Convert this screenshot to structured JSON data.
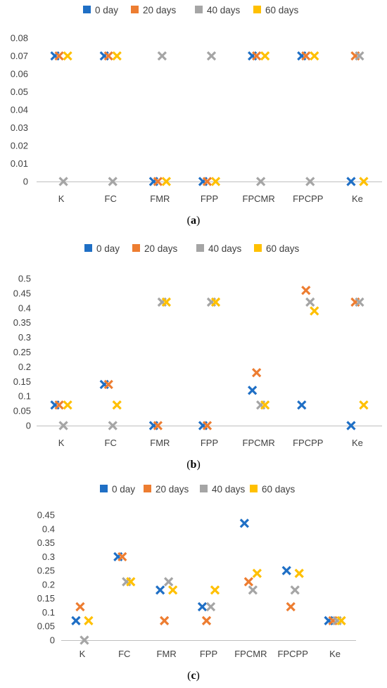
{
  "colors": {
    "0 day": "#1F6FC5",
    "20 days": "#ED7D31",
    "40 days": "#A5A5A5",
    "60 days": "#FFC000",
    "axis": "#BFBFBF"
  },
  "chart_data": [
    {
      "type": "scatter",
      "caption": "a",
      "categories": [
        "K",
        "FC",
        "FMR",
        "FPP",
        "FPCMR",
        "FPCPP",
        "Ke"
      ],
      "yticks": [
        "0",
        "0.01",
        "0.02",
        "0.03",
        "0.04",
        "0.05",
        "0.06",
        "0.07",
        "0.08"
      ],
      "ylim": [
        0,
        0.08
      ],
      "legend_position": "top",
      "series": [
        {
          "name": "0 day",
          "values": [
            0.07,
            0.07,
            0,
            0,
            0.07,
            0.07,
            0
          ]
        },
        {
          "name": "20 days",
          "values": [
            0.07,
            0.07,
            0,
            0,
            0.07,
            0.07,
            0.07
          ]
        },
        {
          "name": "40 days",
          "values": [
            0,
            0,
            0.07,
            0.07,
            0,
            0,
            0.07
          ]
        },
        {
          "name": "60 days",
          "values": [
            0.07,
            0.07,
            0,
            0,
            0.07,
            0.07,
            0
          ]
        }
      ]
    },
    {
      "type": "scatter",
      "caption": "b",
      "categories": [
        "K",
        "FC",
        "FMR",
        "FPP",
        "FPCMR",
        "FPCPP",
        "Ke"
      ],
      "yticks": [
        "0",
        "0.05",
        "0.1",
        "0.15",
        "0.2",
        "0.25",
        "0.3",
        "0.35",
        "0.4",
        "0.45",
        "0.5"
      ],
      "ylim": [
        0,
        0.5
      ],
      "legend_position": "top",
      "series": [
        {
          "name": "0 day",
          "values": [
            0.07,
            0.14,
            0,
            0,
            0.12,
            0.07,
            0
          ]
        },
        {
          "name": "20 days",
          "values": [
            0.07,
            0.14,
            0,
            0,
            0.18,
            0.46,
            0.42
          ]
        },
        {
          "name": "40 days",
          "values": [
            0,
            0,
            0.42,
            0.42,
            0.07,
            0.42,
            0.42
          ]
        },
        {
          "name": "60 days",
          "values": [
            0.07,
            0.07,
            0.42,
            0.42,
            0.07,
            0.39,
            0.07
          ]
        }
      ]
    },
    {
      "type": "scatter",
      "caption": "c",
      "categories": [
        "K",
        "FC",
        "FMR",
        "FPP",
        "FPCMR",
        "FPCPP",
        "Ke"
      ],
      "yticks": [
        "0",
        "0.05",
        "0.1",
        "0.15",
        "0.2",
        "0.25",
        "0.3",
        "0.35",
        "0.4",
        "0.45"
      ],
      "ylim": [
        0,
        0.45
      ],
      "legend_position": "top",
      "series": [
        {
          "name": "0 day",
          "values": [
            0.07,
            0.3,
            0.18,
            0.12,
            0.42,
            0.25,
            0.07
          ]
        },
        {
          "name": "20 days",
          "values": [
            0.12,
            0.3,
            0.07,
            0.07,
            0.21,
            0.12,
            0.07
          ]
        },
        {
          "name": "40 days",
          "values": [
            0,
            0.21,
            0.21,
            0.12,
            0.18,
            0.18,
            0.07
          ]
        },
        {
          "name": "60 days",
          "values": [
            0.07,
            0.21,
            0.18,
            0.18,
            0.24,
            0.24,
            0.07
          ]
        }
      ]
    }
  ]
}
